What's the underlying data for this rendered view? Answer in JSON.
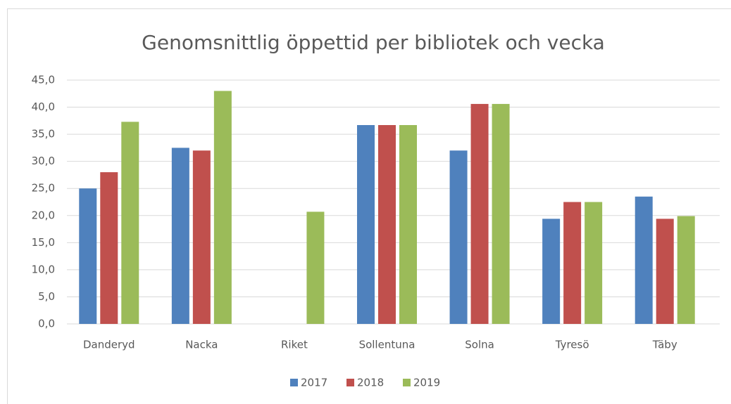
{
  "chart_data": {
    "type": "bar",
    "title": "Genomsnittlig öppettid per bibliotek och vecka",
    "categories": [
      "Danderyd",
      "Nacka",
      "Riket",
      "Sollentuna",
      "Solna",
      "Tyresö",
      "Täby"
    ],
    "series": [
      {
        "name": "2017",
        "color": "#4f81bd",
        "values": [
          25,
          32.5,
          null,
          36.7,
          32,
          19.4,
          23.5
        ]
      },
      {
        "name": "2018",
        "color": "#c0504d",
        "values": [
          28,
          32,
          null,
          36.7,
          40.6,
          22.5,
          19.4
        ]
      },
      {
        "name": "2019",
        "color": "#9bbb59",
        "values": [
          37.3,
          43,
          20.7,
          36.7,
          40.6,
          22.5,
          19.9
        ]
      }
    ],
    "ylim": [
      0,
      45
    ],
    "yticks": [
      {
        "value": 0,
        "label": "0,0"
      },
      {
        "value": 5,
        "label": "5,0"
      },
      {
        "value": 10,
        "label": "10,0"
      },
      {
        "value": 15,
        "label": "15,0"
      },
      {
        "value": 20,
        "label": "20,0"
      },
      {
        "value": 25,
        "label": "25,0"
      },
      {
        "value": 30,
        "label": "30,0"
      },
      {
        "value": 35,
        "label": "35,0"
      },
      {
        "value": 40,
        "label": "40,0"
      },
      {
        "value": 45,
        "label": "45,0"
      }
    ],
    "grid": true,
    "legend": "bottom"
  }
}
